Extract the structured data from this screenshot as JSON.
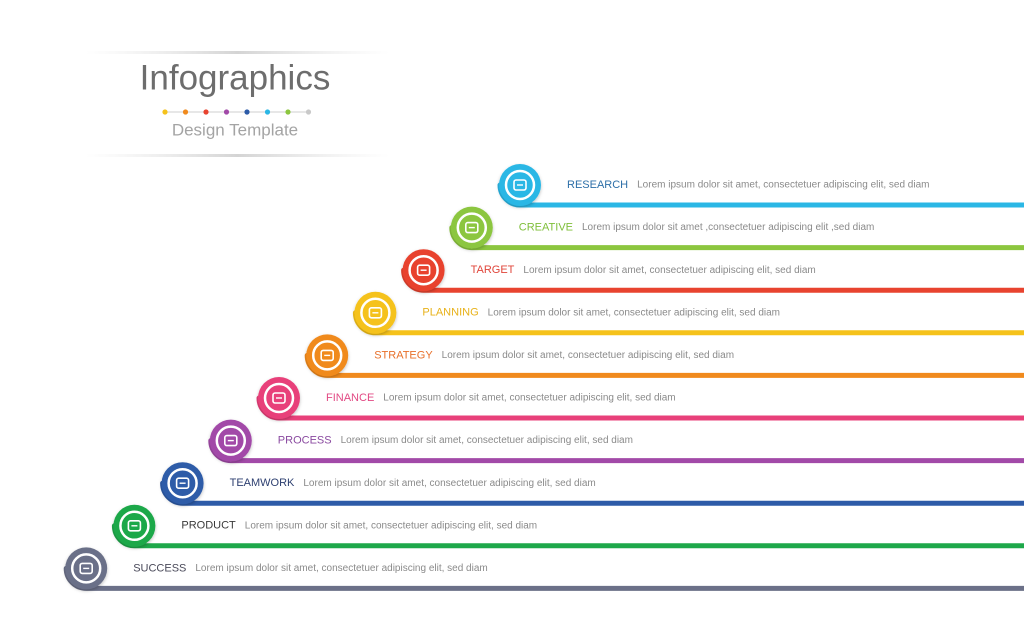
{
  "header": {
    "title": "Infographics",
    "subtitle": "Design Template"
  },
  "steps": [
    {
      "label": "RESEARCH",
      "text": "Lorem ipsum dolor sit amet, consectetuer adipiscing elit, sed diam"
    },
    {
      "label": "CREATIVE",
      "text": "Lorem ipsum dolor sit amet ,consectetuer adipiscing elit ,sed diam"
    },
    {
      "label": "TARGET",
      "text": "Lorem ipsum dolor sit amet, consectetuer adipiscing elit, sed diam"
    },
    {
      "label": "PLANNING",
      "text": "Lorem ipsum dolor sit amet, consectetuer adipiscing elit, sed diam"
    },
    {
      "label": "STRATEGY",
      "text": "Lorem ipsum dolor sit amet, consectetuer adipiscing elit, sed diam"
    },
    {
      "label": "FINANCE",
      "text": "Lorem ipsum dolor sit amet, consectetuer adipiscing elit, sed diam"
    },
    {
      "label": "PROCESS",
      "text": "Lorem ipsum dolor sit amet, consectetuer adipiscing elit, sed diam"
    },
    {
      "label": "TEAMWORK",
      "text": "Lorem ipsum dolor sit amet, consectetuer adipiscing elit, sed diam"
    },
    {
      "label": "PRODUCT",
      "text": "Lorem ipsum dolor sit amet, consectetuer adipiscing elit, sed diam"
    },
    {
      "label": "SUCCESS",
      "text": "Lorem ipsum dolor sit amet, consectetuer adipiscing elit, sed diam"
    }
  ]
}
